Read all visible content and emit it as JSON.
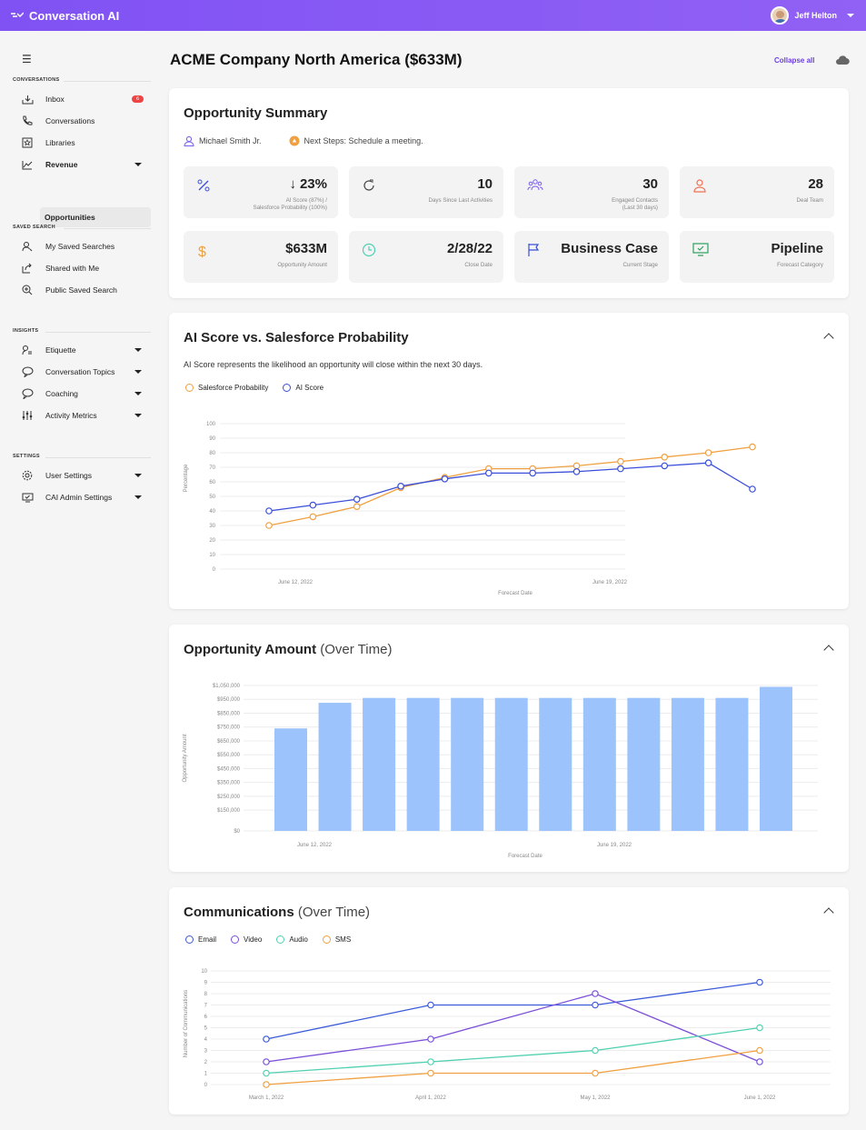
{
  "app": {
    "title": "Conversation AI",
    "user_name": "Jeff Helton"
  },
  "sidebar": {
    "sections": {
      "conversations": "CONVERSATIONS",
      "saved_search": "SAVED SEARCH",
      "insights": "INSIGHTS",
      "settings": "SETTINGS"
    },
    "items": {
      "inbox": {
        "label": "Inbox",
        "badge": "6"
      },
      "conversations": {
        "label": "Conversations"
      },
      "libraries": {
        "label": "Libraries"
      },
      "revenue": {
        "label": "Revenue"
      },
      "opportunities": {
        "label": "Opportunities"
      },
      "my_saved_searches": {
        "label": "My Saved Searches"
      },
      "shared_with_me": {
        "label": "Shared with Me"
      },
      "public_saved_search": {
        "label": "Public Saved Search"
      },
      "etiquette": {
        "label": "Etiquette"
      },
      "conversation_topics": {
        "label": "Conversation Topics"
      },
      "coaching": {
        "label": "Coaching"
      },
      "activity_metrics": {
        "label": "Activity Metrics"
      },
      "user_settings": {
        "label": "User Settings"
      },
      "cai_admin_settings": {
        "label": "CAI Admin Settings"
      }
    }
  },
  "header": {
    "title": "ACME Company North America ($633M)",
    "collapse_all": "Collapse all"
  },
  "summary": {
    "title": "Opportunity Summary",
    "owner": "Michael Smith Jr.",
    "next_steps": "Next Steps: Schedule a meeting.",
    "tiles": {
      "ai_score": {
        "value": "23%",
        "label1": "AI Score (87%) /",
        "label2": "Salesforce Probability (100%)"
      },
      "days_since": {
        "value": "10",
        "label1": "Days Since Last Activities",
        "label2": ""
      },
      "engaged": {
        "value": "30",
        "label1": "Engaged Contacts",
        "label2": "(Last 30 days)"
      },
      "deal_team": {
        "value": "28",
        "label1": "Deal Team",
        "label2": ""
      },
      "amount": {
        "value": "$633M",
        "label1": "Opportunity Amount",
        "label2": ""
      },
      "close_date": {
        "value": "2/28/22",
        "label1": "Close Date",
        "label2": ""
      },
      "stage": {
        "value": "Business Case",
        "label1": "Current Stage",
        "label2": ""
      },
      "forecast": {
        "value": "Pipeline",
        "label1": "Forecast Category",
        "label2": ""
      }
    }
  },
  "ai_chart": {
    "title": "AI Score vs. Salesforce Probability",
    "description": "AI Score represents the likelihood an opportunity will close within the next 30 days.",
    "colors": {
      "salesforce": "#f0a040",
      "ai": "#3b4fd8"
    }
  },
  "amount_chart": {
    "title": "Opportunity Amount",
    "title_suffix": "(Over Time)",
    "color": "#9cc3fb"
  },
  "comms_chart": {
    "title": "Communications",
    "title_suffix": "(Over Time)",
    "colors": {
      "email": "#3b5bd8",
      "video": "#7b4fd8",
      "audio": "#4fd0b0",
      "sms": "#f0a040"
    }
  },
  "chart_data": [
    {
      "type": "line",
      "x_ticks": [
        "June 12, 2022",
        "June 19, 2022"
      ],
      "xlabel": "Forecast Date",
      "ylabel": "Percentage",
      "ylim": [
        0,
        100
      ],
      "y_ticks": [
        0,
        10,
        20,
        30,
        40,
        50,
        60,
        70,
        80,
        90,
        100
      ],
      "series": [
        {
          "name": "Salesforce Probability",
          "values": [
            30,
            36,
            43,
            56,
            63,
            69,
            69,
            71,
            74,
            77,
            80,
            84
          ]
        },
        {
          "name": "AI Score",
          "values": [
            40,
            44,
            48,
            57,
            62,
            66,
            66,
            67,
            69,
            71,
            73,
            55
          ]
        }
      ]
    },
    {
      "type": "bar",
      "x_ticks": [
        "June 12, 2022",
        "June 19, 2022"
      ],
      "xlabel": "Forecast Date",
      "ylabel": "Opportunity Amount",
      "ylim": [
        0,
        1050000
      ],
      "y_ticks": [
        "$0",
        "$150,000",
        "$250,000",
        "$350,000",
        "$450,000",
        "$550,000",
        "$650,000",
        "$750,000",
        "$850,000",
        "$950,000",
        "$1,050,000"
      ],
      "values": [
        740000,
        925000,
        960000,
        960000,
        960000,
        960000,
        960000,
        960000,
        960000,
        960000,
        960000,
        1040000
      ]
    },
    {
      "type": "line",
      "categories": [
        "March 1, 2022",
        "April 1, 2022",
        "May 1, 2022",
        "June 1, 2022"
      ],
      "ylabel": "Number of Communications",
      "ylim": [
        0,
        10
      ],
      "y_ticks": [
        0,
        1,
        2,
        3,
        4,
        5,
        6,
        7,
        8,
        9,
        10
      ],
      "series": [
        {
          "name": "Email",
          "values": [
            4,
            7,
            7,
            9
          ]
        },
        {
          "name": "Video",
          "values": [
            2,
            4,
            8,
            2
          ]
        },
        {
          "name": "Audio",
          "values": [
            1,
            2,
            3,
            5
          ]
        },
        {
          "name": "SMS",
          "values": [
            0,
            1,
            1,
            3
          ]
        }
      ]
    }
  ]
}
